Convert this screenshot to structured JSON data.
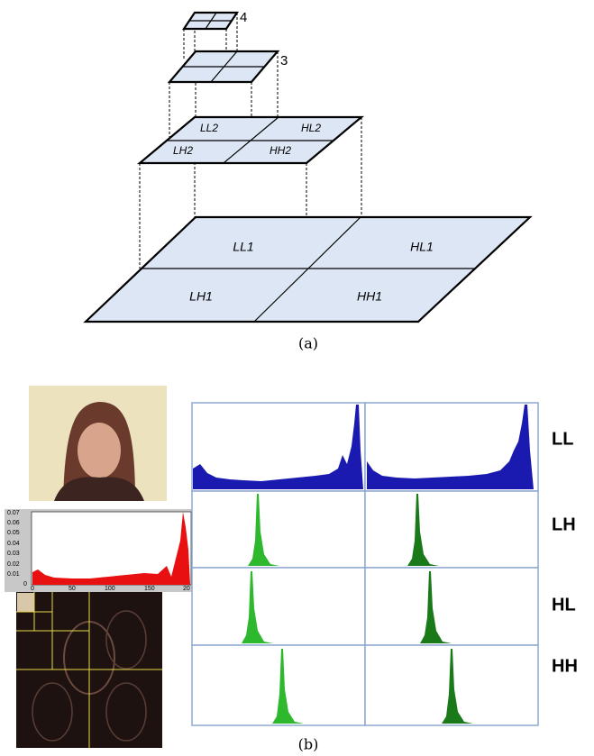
{
  "diagram_a": {
    "level4": {
      "label": "4"
    },
    "level3": {
      "label": "3"
    },
    "level2": {
      "ll": "LL2",
      "hl": "HL2",
      "lh": "LH2",
      "hh": "HH2"
    },
    "level1": {
      "ll": "LL1",
      "hl": "HL1",
      "lh": "LH1",
      "hh": "HH1"
    },
    "caption": "(a)"
  },
  "figure_b": {
    "row_labels": [
      "LL",
      "LH",
      "HL",
      "HH"
    ],
    "histogram_y_labels": [
      "0.07",
      "0.06",
      "0.05",
      "0.04",
      "0.03",
      "0.02",
      "0.01",
      "0"
    ],
    "histogram_x_labels": [
      "0",
      "50",
      "100",
      "150",
      "20"
    ],
    "caption": "(b)"
  }
}
